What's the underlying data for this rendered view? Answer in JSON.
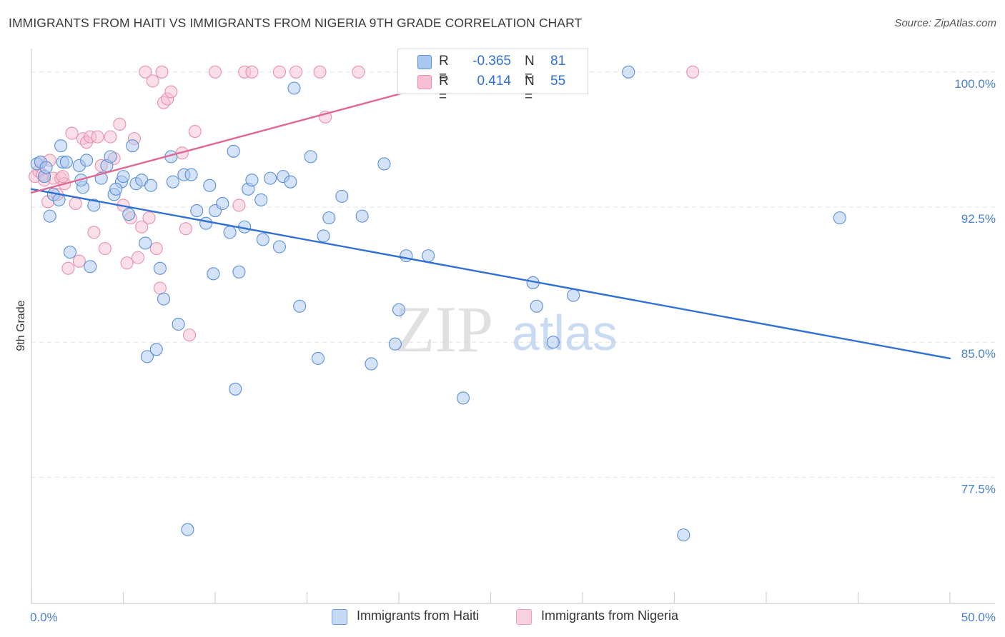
{
  "title": "IMMIGRANTS FROM HAITI VS IMMIGRANTS FROM NIGERIA 9TH GRADE CORRELATION CHART",
  "source": "Source: ZipAtlas.com",
  "watermark": {
    "zip": "ZIP",
    "atlas": "atlas"
  },
  "colors": {
    "haiti_fill": "#a9c8f0",
    "haiti_stroke": "#5b8fd8",
    "haiti_line": "#2f6fd6",
    "nigeria_fill": "#f7bfd0",
    "nigeria_stroke": "#e890ad",
    "nigeria_line": "#e06890",
    "tick": "#4a7fd0",
    "grid": "#e3e3e3"
  },
  "legend": {
    "rows": [
      {
        "r_label": "R =",
        "r_value": "-0.365",
        "n_label": "N =",
        "n_value": "81"
      },
      {
        "r_label": "R =",
        "r_value": "0.414",
        "n_label": "N =",
        "n_value": "55"
      }
    ]
  },
  "bottom_legend": {
    "haiti": "Immigrants from Haiti",
    "nigeria": "Immigrants from Nigeria"
  },
  "chart_data": {
    "type": "scatter",
    "title": "IMMIGRANTS FROM HAITI VS IMMIGRANTS FROM NIGERIA 9TH GRADE CORRELATION CHART",
    "xlabel": "",
    "ylabel": "9th Grade",
    "xlim": [
      0,
      50
    ],
    "ylim": [
      70.5,
      101.3
    ],
    "x_tick_labels": [
      {
        "value": 0,
        "label": "0.0%"
      },
      {
        "value": 50,
        "label": "50.0%"
      }
    ],
    "y_ticks": [
      {
        "value": 100,
        "label": "100.0%"
      },
      {
        "value": 92.5,
        "label": "92.5%"
      },
      {
        "value": 85,
        "label": "85.0%"
      },
      {
        "value": 77.5,
        "label": "77.5%"
      }
    ],
    "x_minor_ticks": [
      0,
      5,
      10,
      15,
      20,
      25,
      30,
      35,
      40,
      45,
      50
    ],
    "legend_position": "top-center",
    "series": [
      {
        "name": "Immigrants from Haiti",
        "trend": {
          "x": [
            0,
            50
          ],
          "y": [
            93.5,
            84.1
          ]
        },
        "points": [
          [
            0.3,
            94.9
          ],
          [
            0.5,
            95.0
          ],
          [
            0.7,
            94.2
          ],
          [
            0.8,
            94.7
          ],
          [
            1.0,
            92.0
          ],
          [
            1.2,
            93.2
          ],
          [
            1.5,
            92.9
          ],
          [
            1.7,
            95.0
          ],
          [
            1.9,
            95.0
          ],
          [
            2.1,
            90.0
          ],
          [
            2.6,
            94.8
          ],
          [
            2.8,
            93.6
          ],
          [
            3.0,
            95.1
          ],
          [
            3.2,
            89.2
          ],
          [
            3.4,
            92.6
          ],
          [
            3.8,
            94.1
          ],
          [
            4.1,
            94.8
          ],
          [
            4.3,
            95.3
          ],
          [
            4.5,
            93.2
          ],
          [
            4.9,
            93.9
          ],
          [
            5.0,
            94.2
          ],
          [
            5.3,
            92.1
          ],
          [
            5.5,
            95.9
          ],
          [
            5.7,
            93.8
          ],
          [
            6.0,
            94.0
          ],
          [
            6.2,
            90.5
          ],
          [
            6.5,
            93.7
          ],
          [
            7.0,
            89.1
          ],
          [
            7.2,
            87.4
          ],
          [
            7.6,
            95.3
          ],
          [
            7.7,
            93.9
          ],
          [
            8.0,
            86.0
          ],
          [
            8.3,
            94.3
          ],
          [
            8.5,
            74.6
          ],
          [
            8.7,
            94.3
          ],
          [
            9.0,
            92.3
          ],
          [
            9.5,
            91.6
          ],
          [
            9.7,
            93.7
          ],
          [
            9.9,
            88.8
          ],
          [
            10.0,
            92.3
          ],
          [
            10.4,
            92.7
          ],
          [
            10.8,
            91.1
          ],
          [
            11.0,
            95.6
          ],
          [
            11.3,
            88.9
          ],
          [
            11.6,
            91.4
          ],
          [
            11.8,
            93.5
          ],
          [
            12.0,
            94.0
          ],
          [
            12.5,
            92.9
          ],
          [
            12.6,
            90.7
          ],
          [
            13.0,
            94.1
          ],
          [
            13.5,
            90.3
          ],
          [
            13.7,
            94.2
          ],
          [
            14.1,
            93.9
          ],
          [
            14.3,
            99.1
          ],
          [
            14.6,
            87.0
          ],
          [
            15.2,
            95.3
          ],
          [
            15.9,
            90.9
          ],
          [
            16.2,
            91.9
          ],
          [
            16.9,
            93.1
          ],
          [
            18.0,
            92.0
          ],
          [
            18.5,
            83.8
          ],
          [
            19.2,
            94.9
          ],
          [
            19.8,
            84.9
          ],
          [
            20.0,
            86.8
          ],
          [
            20.4,
            89.8
          ],
          [
            21.6,
            89.8
          ],
          [
            23.5,
            81.9
          ],
          [
            27.3,
            88.3
          ],
          [
            27.5,
            87.0
          ],
          [
            28.4,
            85.0
          ],
          [
            29.5,
            87.6
          ],
          [
            32.5,
            100.0
          ],
          [
            35.5,
            74.3
          ],
          [
            44.0,
            91.9
          ],
          [
            6.3,
            84.2
          ],
          [
            6.8,
            84.6
          ],
          [
            2.7,
            94.0
          ],
          [
            4.6,
            93.5
          ],
          [
            11.1,
            82.4
          ],
          [
            15.6,
            84.1
          ],
          [
            1.6,
            95.9
          ]
        ]
      },
      {
        "name": "Immigrants from Nigeria",
        "trend": {
          "x": [
            0,
            24.5
          ],
          "y": [
            93.3,
            100.0
          ]
        },
        "points": [
          [
            0.2,
            94.2
          ],
          [
            0.4,
            94.5
          ],
          [
            0.5,
            95.0
          ],
          [
            0.6,
            94.3
          ],
          [
            0.7,
            94.0
          ],
          [
            0.9,
            92.8
          ],
          [
            1.0,
            95.1
          ],
          [
            1.2,
            94.1
          ],
          [
            1.4,
            93.2
          ],
          [
            1.6,
            94.1
          ],
          [
            1.8,
            93.8
          ],
          [
            2.0,
            89.1
          ],
          [
            2.2,
            96.6
          ],
          [
            2.4,
            92.7
          ],
          [
            2.6,
            89.5
          ],
          [
            2.8,
            96.3
          ],
          [
            3.0,
            96.1
          ],
          [
            3.2,
            96.4
          ],
          [
            3.4,
            91.1
          ],
          [
            3.6,
            96.4
          ],
          [
            3.8,
            94.8
          ],
          [
            4.0,
            90.2
          ],
          [
            4.3,
            96.4
          ],
          [
            4.5,
            95.2
          ],
          [
            4.8,
            97.1
          ],
          [
            5.0,
            92.6
          ],
          [
            5.2,
            89.4
          ],
          [
            5.4,
            91.9
          ],
          [
            5.6,
            96.3
          ],
          [
            5.8,
            89.7
          ],
          [
            6.0,
            91.4
          ],
          [
            6.2,
            100.0
          ],
          [
            6.4,
            91.9
          ],
          [
            6.6,
            99.5
          ],
          [
            6.8,
            90.2
          ],
          [
            7.0,
            88.0
          ],
          [
            7.1,
            100.0
          ],
          [
            7.2,
            98.3
          ],
          [
            7.4,
            98.5
          ],
          [
            7.6,
            98.9
          ],
          [
            8.2,
            95.5
          ],
          [
            8.4,
            91.3
          ],
          [
            8.6,
            85.4
          ],
          [
            8.9,
            96.7
          ],
          [
            10.0,
            100.0
          ],
          [
            11.3,
            92.6
          ],
          [
            11.6,
            100.0
          ],
          [
            12.0,
            100.0
          ],
          [
            13.5,
            100.0
          ],
          [
            14.4,
            100.0
          ],
          [
            15.7,
            100.0
          ],
          [
            16.0,
            97.5
          ],
          [
            17.8,
            100.0
          ],
          [
            36.0,
            100.0
          ],
          [
            1.7,
            94.2
          ]
        ]
      }
    ]
  }
}
